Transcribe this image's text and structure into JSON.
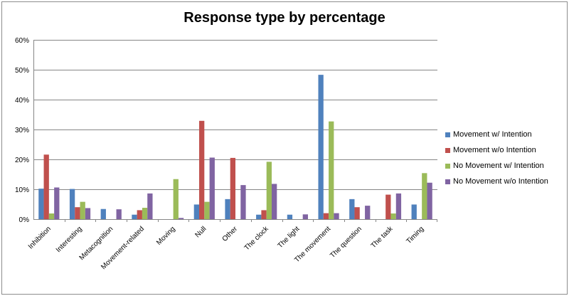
{
  "chart_data": {
    "type": "bar",
    "title": "Response type by percentage",
    "xlabel": "",
    "ylabel": "",
    "ylim": [
      0,
      60
    ],
    "yticks": [
      "0%",
      "10%",
      "20%",
      "30%",
      "40%",
      "50%",
      "60%"
    ],
    "grid": true,
    "legend_position": "right",
    "categories": [
      "Inhibition",
      "Interesting",
      "Metacognition",
      "Movement-related",
      "Moving",
      "Null",
      "Other",
      "The clock",
      "The light",
      "The movement",
      "The question",
      "The task",
      "Timing"
    ],
    "series": [
      {
        "name": "Movement w/ Intention",
        "color": "#4f81bd",
        "values": [
          10.2,
          10.1,
          3.4,
          1.5,
          0.0,
          4.9,
          6.7,
          1.5,
          1.5,
          48.3,
          6.7,
          0.0,
          4.9
        ]
      },
      {
        "name": "Movement w/o Intention",
        "color": "#c0504d",
        "values": [
          21.6,
          4.0,
          0.0,
          3.0,
          0.0,
          32.9,
          20.5,
          3.0,
          0.0,
          2.0,
          4.0,
          8.2,
          0.0
        ]
      },
      {
        "name": "No Movement w/ Intention",
        "color": "#9bbb59",
        "values": [
          1.9,
          5.8,
          0.0,
          3.8,
          13.4,
          5.8,
          0.0,
          19.2,
          0.0,
          32.7,
          0.0,
          1.9,
          15.4
        ]
      },
      {
        "name": "No Movement w/o Intention",
        "color": "#8064a2",
        "values": [
          10.6,
          3.7,
          3.3,
          8.6,
          0.4,
          20.6,
          11.4,
          11.8,
          1.6,
          2.0,
          4.5,
          8.6,
          12.2
        ]
      }
    ]
  }
}
